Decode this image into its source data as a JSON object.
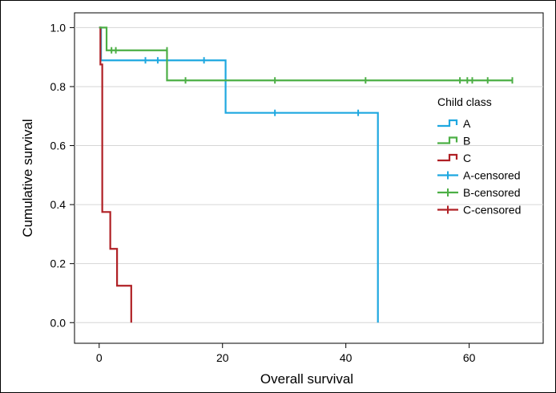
{
  "chart_data": {
    "type": "line",
    "subtype": "kaplan-meier",
    "title": "",
    "xlabel": "Overall survival",
    "ylabel": "Cumulative survival",
    "xlim": [
      -4,
      72
    ],
    "ylim": [
      -0.07,
      1.05
    ],
    "xticks": [
      0,
      20,
      40,
      60
    ],
    "xtick_labels": [
      "0",
      "20",
      "40",
      "60"
    ],
    "yticks": [
      0.0,
      0.2,
      0.4,
      0.6,
      0.8,
      1.0
    ],
    "ytick_labels": [
      "0.0",
      "0.2",
      "0.4",
      "0.6",
      "0.8",
      "1.0"
    ],
    "grid": "horizontal",
    "legend": {
      "title": "Child class",
      "position": "right",
      "entries": [
        {
          "label": "A",
          "series": "A",
          "kind": "step"
        },
        {
          "label": "B",
          "series": "B",
          "kind": "step"
        },
        {
          "label": "C",
          "series": "C",
          "kind": "step"
        },
        {
          "label": "A-censored",
          "series": "A",
          "kind": "censor"
        },
        {
          "label": "B-censored",
          "series": "B",
          "kind": "censor"
        },
        {
          "label": "C-censored",
          "series": "C",
          "kind": "censor"
        }
      ]
    },
    "series": [
      {
        "name": "A",
        "color": "#1FA8E0",
        "steps": [
          [
            0,
            1.0
          ],
          [
            0.3,
            0.889
          ],
          [
            20.5,
            0.711
          ],
          [
            45.2,
            0.0
          ]
        ],
        "end_x": 45.2,
        "censored": [
          [
            7.5,
            0.889
          ],
          [
            9.5,
            0.889
          ],
          [
            17,
            0.889
          ],
          [
            28.5,
            0.711
          ],
          [
            42,
            0.711
          ]
        ]
      },
      {
        "name": "B",
        "color": "#4CAF45",
        "steps": [
          [
            0,
            1.0
          ],
          [
            1.2,
            0.923
          ],
          [
            11,
            0.821
          ]
        ],
        "end_x": 67,
        "censored": [
          [
            2,
            0.923
          ],
          [
            2.7,
            0.923
          ],
          [
            11,
            0.923
          ],
          [
            14,
            0.821
          ],
          [
            28.5,
            0.821
          ],
          [
            43.2,
            0.821
          ],
          [
            58.5,
            0.821
          ],
          [
            59.7,
            0.821
          ],
          [
            60.5,
            0.821
          ],
          [
            63,
            0.821
          ],
          [
            67,
            0.821
          ]
        ]
      },
      {
        "name": "C",
        "color": "#B02025",
        "steps": [
          [
            0,
            1.0
          ],
          [
            0.2,
            0.875
          ],
          [
            0.5,
            0.375
          ],
          [
            1.8,
            0.25
          ],
          [
            2.9,
            0.125
          ],
          [
            5.2,
            0.0
          ]
        ],
        "end_x": 5.2,
        "censored": []
      }
    ]
  }
}
